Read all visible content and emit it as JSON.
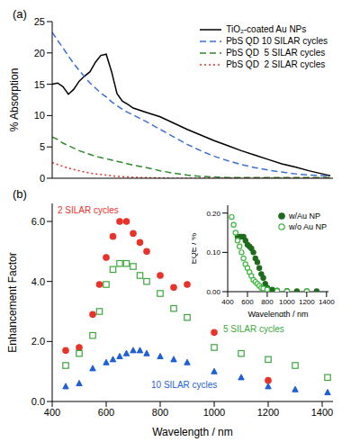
{
  "chart_data": [
    {
      "type": "line",
      "title": "(a)",
      "ylabel": "% Absorption",
      "xlim": [
        400,
        1440
      ],
      "xticks": [
        400,
        600,
        800,
        1000,
        1200,
        1400
      ],
      "ylim": [
        0,
        25
      ],
      "yticks": [
        0,
        5,
        10,
        15,
        20,
        25
      ],
      "grid": false,
      "legend": "upper right",
      "tick_labels": "y",
      "x": [
        400,
        420,
        440,
        460,
        480,
        500,
        520,
        540,
        560,
        580,
        600,
        620,
        640,
        660,
        680,
        700,
        750,
        800,
        850,
        900,
        950,
        1000,
        1050,
        1100,
        1150,
        1200,
        1250,
        1300,
        1350,
        1400,
        1430
      ],
      "series": [
        {
          "name": "TiO₂-coated Au NPs",
          "color": "#000000",
          "line_style": "solid",
          "values": [
            15.0,
            15.2,
            14.6,
            13.4,
            14.2,
            15.5,
            16.3,
            17.0,
            18.5,
            19.6,
            19.8,
            17.0,
            13.5,
            12.3,
            11.8,
            11.2,
            10.5,
            9.8,
            8.8,
            7.8,
            6.9,
            6.0,
            5.2,
            4.4,
            3.7,
            3.0,
            2.3,
            1.8,
            1.2,
            0.7,
            0.4
          ]
        },
        {
          "name": "PbS QD 10 SILAR cycles",
          "color": "#3b6fd6",
          "line_style": "dashed",
          "values": [
            23.3,
            22.0,
            20.8,
            19.5,
            18.3,
            17.2,
            16.2,
            15.2,
            14.4,
            13.6,
            13.0,
            12.2,
            11.6,
            11.0,
            10.5,
            10.1,
            9.0,
            7.8,
            6.6,
            5.4,
            4.4,
            3.5,
            2.8,
            2.2,
            1.7,
            1.3,
            1.0,
            0.7,
            0.5,
            0.4,
            0.3
          ]
        },
        {
          "name": "PbS QD  5 SILAR cycles",
          "color": "#2e8b2e",
          "line_style": "dashed",
          "values": [
            6.6,
            6.2,
            5.6,
            5.2,
            4.8,
            4.4,
            4.1,
            3.8,
            3.5,
            3.3,
            3.1,
            2.9,
            2.7,
            2.5,
            2.3,
            2.1,
            1.7,
            1.2,
            0.8,
            0.5,
            0.3,
            0.2,
            0.1,
            0.1,
            0.1,
            0.1,
            0.1,
            0.1,
            0.1,
            0.1,
            0.1
          ]
        },
        {
          "name": "PbS QD  2 SILAR cycles",
          "color": "#e8332a",
          "line_style": "dotted",
          "values": [
            2.5,
            2.2,
            1.9,
            1.6,
            1.4,
            1.2,
            1.0,
            0.8,
            0.7,
            0.6,
            0.5,
            0.4,
            0.3,
            0.25,
            0.2,
            0.15,
            0.1,
            0.05,
            0,
            0,
            0,
            0,
            0,
            0,
            0,
            0,
            0,
            0,
            0,
            0,
            0
          ]
        }
      ]
    },
    {
      "type": "scatter",
      "title": "(b)",
      "xlabel": "Wavelength / nm",
      "ylabel": "Enhancement Factor",
      "xlim": [
        400,
        1440
      ],
      "xticks": [
        400,
        600,
        800,
        1000,
        1200,
        1400
      ],
      "ylim": [
        0,
        6.6
      ],
      "yticks": [
        {
          "value": 0,
          "label": "0.0"
        },
        {
          "value": 2,
          "label": "2.0"
        },
        {
          "value": 4,
          "label": "4.0"
        },
        {
          "value": 6,
          "label": "6.0"
        }
      ],
      "grid": false,
      "series": [
        {
          "name": "2 SILAR cycles",
          "color": "#e8332a",
          "marker": "circle",
          "x": [
            450,
            500,
            550,
            575,
            600,
            625,
            650,
            675,
            700,
            725,
            750,
            800,
            850,
            900,
            1000,
            1200
          ],
          "values": [
            1.7,
            1.8,
            2.9,
            3.9,
            4.8,
            5.5,
            6.0,
            6.0,
            5.6,
            5.3,
            5.0,
            4.2,
            3.8,
            3.9,
            2.3,
            0.7
          ]
        },
        {
          "name": "5 SILAR cycles",
          "color": "#3ca83c",
          "marker": "open_square",
          "x": [
            450,
            500,
            550,
            575,
            600,
            625,
            650,
            675,
            700,
            725,
            750,
            800,
            850,
            900,
            1000,
            1100,
            1200,
            1300,
            1420
          ],
          "values": [
            1.2,
            1.6,
            2.2,
            3.0,
            3.9,
            4.4,
            4.6,
            4.6,
            4.5,
            4.2,
            4.0,
            3.6,
            3.1,
            2.8,
            1.8,
            1.6,
            1.4,
            1.2,
            0.8
          ]
        },
        {
          "name": "10 SILAR cycles",
          "color": "#1f5fd6",
          "marker": "triangle",
          "x": [
            450,
            500,
            550,
            600,
            625,
            650,
            675,
            700,
            725,
            750,
            800,
            850,
            900,
            1000,
            1100,
            1200,
            1300,
            1420
          ],
          "values": [
            0.5,
            0.6,
            1.1,
            1.3,
            1.4,
            1.5,
            1.6,
            1.7,
            1.7,
            1.6,
            1.5,
            1.4,
            1.3,
            1.0,
            0.8,
            0.5,
            0.4,
            0.3
          ]
        }
      ]
    },
    {
      "type": "scatter",
      "xlabel": "Wavelength / nm",
      "ylabel": "EQE / %",
      "xlim": [
        400,
        1420
      ],
      "xticks": [
        400,
        600,
        800,
        1000,
        1200,
        1400
      ],
      "ylim": [
        0,
        0.22
      ],
      "yticks": [
        {
          "value": 0,
          "label": "0.00"
        },
        {
          "value": 0.1,
          "label": "0.10"
        },
        {
          "value": 0.2,
          "label": "0.20"
        }
      ],
      "grid": false,
      "legend": "upper right",
      "series": [
        {
          "name": "w/Au NP",
          "color": "#1e6b1e",
          "marker": "circle",
          "x": [
            500,
            520,
            540,
            560,
            580,
            600,
            620,
            640,
            660,
            680,
            700,
            720,
            740,
            760,
            780,
            800,
            850,
            900,
            1000,
            1100,
            1200,
            1300
          ],
          "values": [
            0.14,
            0.14,
            0.14,
            0.14,
            0.13,
            0.12,
            0.115,
            0.11,
            0.1,
            0.085,
            0.075,
            0.06,
            0.045,
            0.035,
            0.02,
            0.01,
            0.005,
            0.003,
            0.002,
            0.001,
            0.001,
            0.001
          ]
        },
        {
          "name": "w/o Au NP",
          "color": "#3cb83c",
          "marker": "open_circle",
          "x": [
            440,
            460,
            480,
            500,
            520,
            540,
            560,
            580,
            600,
            620,
            640,
            660,
            680,
            700,
            720,
            740,
            760,
            800,
            900,
            1000,
            1200
          ],
          "values": [
            0.19,
            0.17,
            0.15,
            0.13,
            0.115,
            0.1,
            0.085,
            0.07,
            0.06,
            0.05,
            0.04,
            0.03,
            0.025,
            0.02,
            0.015,
            0.01,
            0.008,
            0.005,
            0.002,
            0.001,
            0.001
          ]
        }
      ]
    }
  ]
}
